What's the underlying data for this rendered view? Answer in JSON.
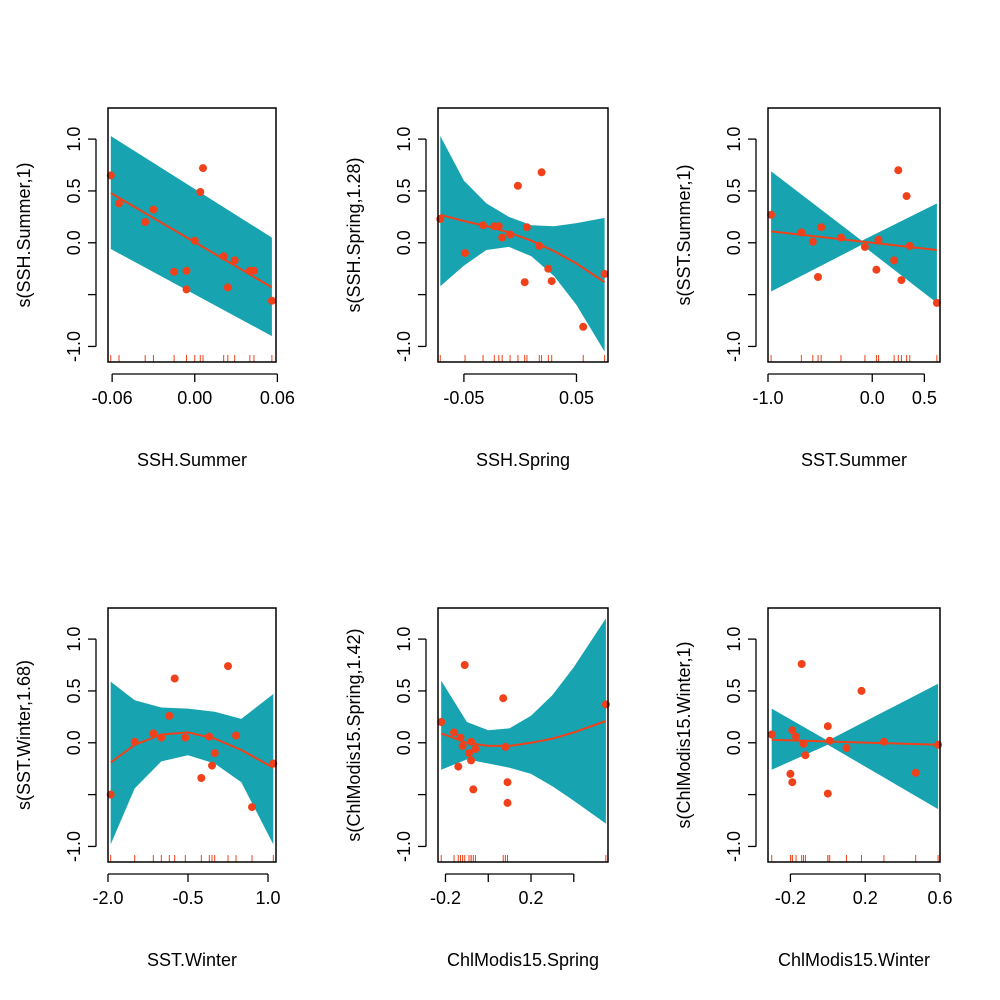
{
  "colors": {
    "band": "#17a3b0",
    "line": "#f0411a",
    "points": "#f0411a",
    "rug": "#f0411a",
    "axis": "#000000"
  },
  "chart_data": [
    {
      "type": "scatter",
      "xlabel": "SSH.Summer",
      "ylabel": "s(SSH.Summer,1)",
      "xlim": [
        -0.063,
        0.059
      ],
      "ylim": [
        -1.15,
        1.3
      ],
      "xticks": [
        -0.06,
        0.0,
        0.06
      ],
      "xtick_labels": [
        "-0.06",
        "0.00",
        "0.06"
      ],
      "yticks": [
        -1.0,
        -0.5,
        0.0,
        0.5,
        1.0
      ],
      "ytick_labels": [
        "-1.0",
        "",
        "0.0",
        "0.5",
        "1.0"
      ],
      "x": [
        -0.061,
        -0.055,
        -0.036,
        -0.03,
        -0.015,
        -0.006,
        -0.006,
        0.0,
        0.004,
        0.006,
        0.021,
        0.024,
        0.029,
        0.04,
        0.043,
        0.056
      ],
      "y": [
        0.65,
        0.38,
        0.2,
        0.32,
        -0.28,
        -0.27,
        -0.45,
        0.02,
        0.49,
        0.72,
        -0.13,
        -0.43,
        -0.17,
        -0.27,
        -0.27,
        -0.56
      ],
      "fit": {
        "x": [
          -0.061,
          0.056
        ],
        "y": [
          0.48,
          -0.43
        ]
      },
      "band": {
        "x": [
          -0.061,
          0.056
        ],
        "upper": [
          1.03,
          0.05
        ],
        "lower": [
          -0.06,
          -0.9
        ]
      }
    },
    {
      "type": "scatter",
      "xlabel": "SSH.Spring",
      "ylabel": "s(SSH.Spring,1.28)",
      "xlim": [
        -0.073,
        0.078
      ],
      "ylim": [
        -1.15,
        1.3
      ],
      "xticks": [
        -0.05,
        0.05
      ],
      "xtick_labels": [
        "-0.05",
        "0.05"
      ],
      "yticks": [
        -1.0,
        -0.5,
        0.0,
        0.5,
        1.0
      ],
      "ytick_labels": [
        "-1.0",
        "",
        "0.0",
        "0.5",
        "1.0"
      ],
      "x": [
        -0.071,
        -0.049,
        -0.033,
        -0.023,
        -0.019,
        -0.016,
        -0.009,
        -0.002,
        0.004,
        0.006,
        0.017,
        0.019,
        0.025,
        0.028,
        0.056,
        0.075
      ],
      "y": [
        0.23,
        -0.1,
        0.17,
        0.16,
        0.16,
        0.05,
        0.08,
        0.55,
        -0.38,
        0.15,
        -0.03,
        0.68,
        -0.25,
        -0.37,
        -0.81,
        -0.3
      ],
      "fit": {
        "x": [
          -0.071,
          -0.05,
          -0.03,
          -0.01,
          0.01,
          0.03,
          0.05,
          0.075
        ],
        "y": [
          0.27,
          0.21,
          0.16,
          0.1,
          0.02,
          -0.08,
          -0.2,
          -0.38
        ]
      },
      "band": {
        "x": [
          -0.071,
          -0.05,
          -0.03,
          -0.01,
          0.01,
          0.03,
          0.05,
          0.075
        ],
        "upper": [
          1.03,
          0.6,
          0.38,
          0.25,
          0.17,
          0.16,
          0.19,
          0.24
        ],
        "lower": [
          -0.42,
          -0.22,
          -0.07,
          -0.04,
          -0.13,
          -0.32,
          -0.6,
          -1.05
        ]
      }
    },
    {
      "type": "scatter",
      "xlabel": "SST.Summer",
      "ylabel": "s(SST.Summer,1)",
      "xlim": [
        -1.0,
        0.65
      ],
      "ylim": [
        -1.15,
        1.3
      ],
      "xticks": [
        -1.0,
        0.0,
        0.5
      ],
      "xtick_labels": [
        "-1.0",
        "0.0",
        "0.5"
      ],
      "yticks": [
        -1.0,
        -0.5,
        0.0,
        0.5,
        1.0
      ],
      "ytick_labels": [
        "-1.0",
        "",
        "0.0",
        "0.5",
        "1.0"
      ],
      "x": [
        -0.97,
        -0.68,
        -0.57,
        -0.52,
        -0.49,
        -0.3,
        -0.07,
        0.04,
        0.06,
        0.21,
        0.25,
        0.28,
        0.33,
        0.36,
        0.62
      ],
      "y": [
        0.27,
        0.1,
        0.01,
        -0.33,
        0.15,
        0.05,
        -0.04,
        -0.26,
        0.03,
        -0.17,
        0.7,
        -0.36,
        0.45,
        -0.03,
        -0.58
      ],
      "fit": {
        "x": [
          -0.97,
          0.62
        ],
        "y": [
          0.11,
          -0.07
        ]
      },
      "band": {
        "x": [
          -0.97,
          -0.1,
          0.62
        ],
        "upper": [
          0.69,
          0.02,
          0.38
        ],
        "lower": [
          -0.47,
          -0.02,
          -0.58
        ]
      }
    },
    {
      "type": "scatter",
      "xlabel": "SST.Winter",
      "ylabel": "s(SST.Winter,1.68)",
      "xlim": [
        -2.0,
        1.15
      ],
      "ylim": [
        -1.15,
        1.3
      ],
      "xticks": [
        -2.0,
        -0.5,
        1.0
      ],
      "xtick_labels": [
        "-2.0",
        "-0.5",
        "1.0"
      ],
      "yticks": [
        -1.0,
        -0.5,
        0.0,
        0.5,
        1.0
      ],
      "ytick_labels": [
        "-1.0",
        "",
        "0.0",
        "0.5",
        "1.0"
      ],
      "x": [
        -1.95,
        -1.5,
        -1.15,
        -1.0,
        -0.85,
        -0.75,
        -0.55,
        -0.25,
        -0.1,
        -0.05,
        0.0,
        0.25,
        0.4,
        0.7,
        1.1
      ],
      "y": [
        -0.5,
        0.01,
        0.09,
        0.05,
        0.26,
        0.62,
        0.05,
        -0.34,
        0.06,
        -0.22,
        -0.1,
        0.74,
        0.07,
        -0.62,
        -0.2
      ],
      "fit": {
        "x": [
          -1.95,
          -1.5,
          -1.0,
          -0.5,
          0.0,
          0.5,
          1.1
        ],
        "y": [
          -0.19,
          -0.02,
          0.08,
          0.1,
          0.04,
          -0.07,
          -0.24
        ]
      },
      "band": {
        "x": [
          -1.95,
          -1.5,
          -1.0,
          -0.5,
          0.0,
          0.5,
          1.1
        ],
        "upper": [
          0.59,
          0.41,
          0.34,
          0.33,
          0.3,
          0.23,
          0.47
        ],
        "lower": [
          -0.98,
          -0.44,
          -0.18,
          -0.12,
          -0.2,
          -0.38,
          -0.98
        ]
      }
    },
    {
      "type": "scatter",
      "xlabel": "ChlModis15.Spring",
      "ylabel": "s(ChlModis15.Spring,1.42)",
      "xlim": [
        -0.235,
        0.56
      ],
      "ylim": [
        -1.15,
        1.3
      ],
      "xticks": [
        -0.2,
        0.0,
        0.2,
        0.4
      ],
      "xtick_labels": [
        "-0.2",
        "",
        "0.2",
        ""
      ],
      "yticks": [
        -1.0,
        -0.5,
        0.0,
        0.5,
        1.0
      ],
      "ytick_labels": [
        "-1.0",
        "",
        "0.0",
        "0.5",
        "1.0"
      ],
      "x": [
        -0.22,
        -0.16,
        -0.14,
        -0.13,
        -0.12,
        -0.11,
        -0.09,
        -0.08,
        -0.08,
        -0.07,
        -0.06,
        0.07,
        0.08,
        0.09,
        0.09,
        0.55
      ],
      "y": [
        0.2,
        0.1,
        -0.23,
        0.05,
        -0.03,
        0.75,
        -0.1,
        -0.17,
        0.01,
        -0.45,
        -0.06,
        0.43,
        -0.04,
        -0.38,
        -0.58,
        0.37
      ],
      "fit": {
        "x": [
          -0.22,
          -0.1,
          0.0,
          0.1,
          0.2,
          0.3,
          0.4,
          0.55
        ],
        "y": [
          0.09,
          0.0,
          -0.03,
          -0.03,
          0.0,
          0.04,
          0.1,
          0.21
        ]
      },
      "band": {
        "x": [
          -0.22,
          -0.1,
          0.0,
          0.1,
          0.2,
          0.3,
          0.4,
          0.55
        ],
        "upper": [
          0.6,
          0.2,
          0.12,
          0.14,
          0.26,
          0.46,
          0.73,
          1.2
        ],
        "lower": [
          -0.26,
          -0.16,
          -0.2,
          -0.24,
          -0.3,
          -0.42,
          -0.56,
          -0.78
        ]
      }
    },
    {
      "type": "scatter",
      "xlabel": "ChlModis15.Winter",
      "ylabel": "s(ChlModis15.Winter,1)",
      "xlim": [
        -0.32,
        0.6
      ],
      "ylim": [
        -1.15,
        1.3
      ],
      "xticks": [
        -0.2,
        0.2,
        0.6
      ],
      "xtick_labels": [
        "-0.2",
        "0.2",
        "0.6"
      ],
      "yticks": [
        -1.0,
        -0.5,
        0.0,
        0.5,
        1.0
      ],
      "ytick_labels": [
        "-1.0",
        "",
        "0.0",
        "0.5",
        "1.0"
      ],
      "x": [
        -0.3,
        -0.2,
        -0.19,
        -0.19,
        -0.17,
        -0.14,
        -0.13,
        -0.12,
        0.0,
        0.0,
        0.01,
        0.1,
        0.18,
        0.3,
        0.47,
        0.59
      ],
      "y": [
        0.08,
        -0.3,
        0.12,
        -0.38,
        0.06,
        0.76,
        -0.01,
        -0.12,
        -0.49,
        0.16,
        0.02,
        -0.05,
        0.5,
        0.01,
        -0.29,
        -0.02
      ],
      "fit": {
        "x": [
          -0.3,
          0.59
        ],
        "y": [
          0.03,
          -0.02
        ]
      },
      "band": {
        "x": [
          -0.3,
          0.0,
          0.59
        ],
        "upper": [
          0.33,
          0.02,
          0.57
        ],
        "lower": [
          -0.26,
          -0.02,
          -0.64
        ]
      }
    }
  ]
}
